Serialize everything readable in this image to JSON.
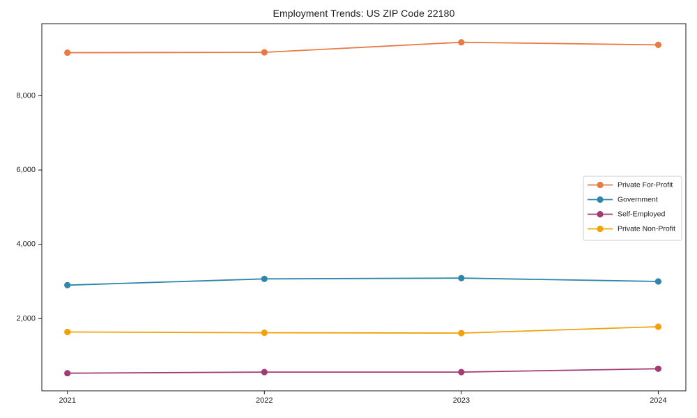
{
  "title": "Employment Trends: US ZIP Code 22180",
  "chart_data": {
    "type": "line",
    "title": "Employment Trends: US ZIP Code 22180",
    "xlabel": "",
    "ylabel": "",
    "x": [
      2021,
      2022,
      2023,
      2024
    ],
    "xtick_labels": [
      "2021",
      "2022",
      "2023",
      "2024"
    ],
    "yticks": [
      2000,
      4000,
      6000,
      8000
    ],
    "ytick_labels": [
      "2,000",
      "4,000",
      "6,000",
      "8,000"
    ],
    "xlim": [
      2020.87,
      2024.14
    ],
    "ylim": [
      55,
      9940
    ],
    "grid": false,
    "legend_position": "center-right",
    "series": [
      {
        "name": "Private For-Profit",
        "color": "#e87a45",
        "marker": "circle",
        "values": [
          9160,
          9170,
          9440,
          9370
        ]
      },
      {
        "name": "Government",
        "color": "#2e86ab",
        "marker": "circle",
        "values": [
          2900,
          3070,
          3090,
          3000
        ]
      },
      {
        "name": "Self-Employed",
        "color": "#a23b72",
        "marker": "circle",
        "values": [
          530,
          560,
          560,
          650
        ]
      },
      {
        "name": "Private Non-Profit",
        "color": "#f1a208",
        "marker": "circle",
        "values": [
          1640,
          1620,
          1610,
          1780
        ]
      }
    ]
  },
  "colors": {
    "background": "#ffffff",
    "axis": "#1a1a1a",
    "tick_text": "#1a1a1a",
    "legend_border": "#cccccc",
    "legend_background": "#ffffff"
  }
}
